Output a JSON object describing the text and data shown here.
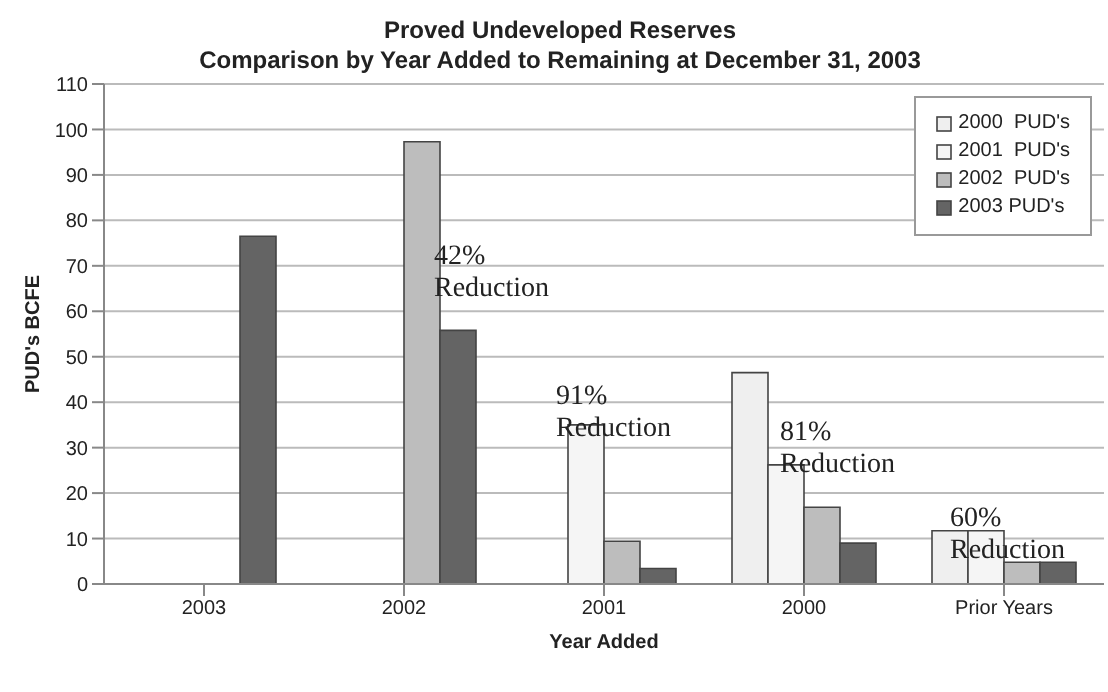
{
  "chart_data": {
    "type": "bar",
    "title": "Proved Undeveloped Reserves",
    "subtitle": "Comparison by Year Added to Remaining at December 31, 2003",
    "xlabel": "Year Added",
    "ylabel": "PUD's BCFE",
    "categories": [
      "2003",
      "2002",
      "2001",
      "2000",
      "Prior Years"
    ],
    "series": [
      {
        "name": "2000  PUD's",
        "color": "#efefef",
        "values": [
          null,
          null,
          null,
          46.5,
          11.7
        ]
      },
      {
        "name": "2001  PUD's",
        "color": "#f5f5f5",
        "values": [
          null,
          null,
          35,
          26.2,
          11.7
        ]
      },
      {
        "name": "2002  PUD's",
        "color": "#bdbdbd",
        "values": [
          null,
          97.3,
          9.4,
          16.9,
          4.8
        ]
      },
      {
        "name": "2003 PUD's",
        "color": "#646464",
        "values": [
          76.5,
          55.8,
          3.4,
          9,
          4.8
        ]
      }
    ],
    "ylim": [
      0,
      110
    ],
    "yticks": [
      0,
      10,
      20,
      30,
      40,
      50,
      60,
      70,
      80,
      90,
      100,
      110
    ],
    "grid": "y",
    "legend": "top right",
    "annotations": [
      "42%\nReduction",
      "91%\nReduction",
      "81%\nReduction",
      "60%\nReduction"
    ]
  }
}
